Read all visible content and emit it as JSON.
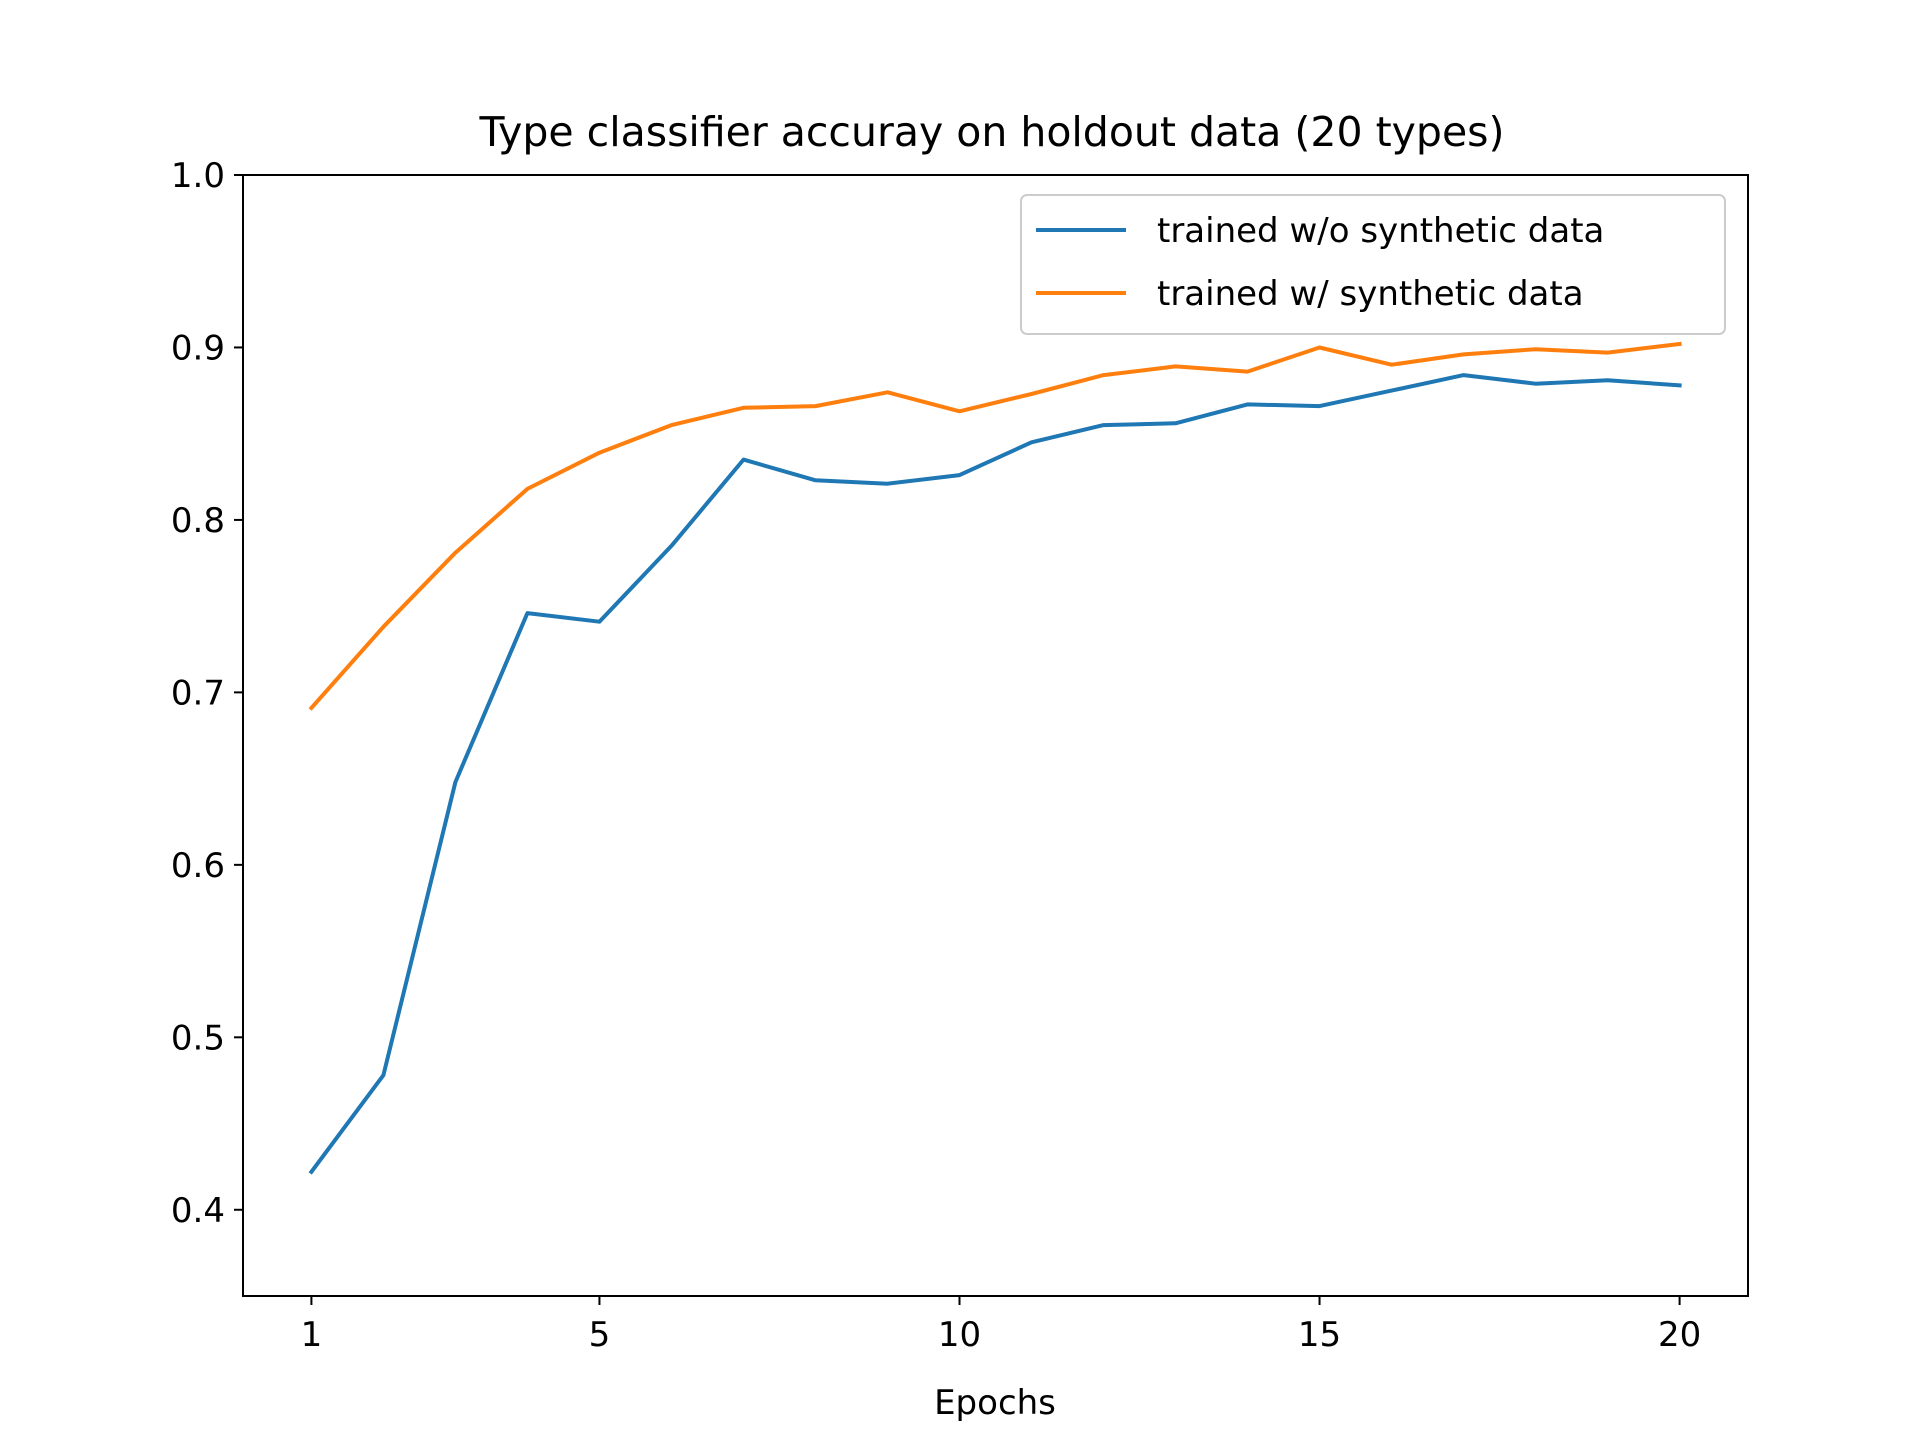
{
  "chart_data": {
    "type": "line",
    "title": "Type classifier accuray on holdout data (20 types)",
    "xlabel": "Epochs",
    "ylabel": "",
    "x": [
      1,
      2,
      3,
      4,
      5,
      6,
      7,
      8,
      9,
      10,
      11,
      12,
      13,
      14,
      15,
      16,
      17,
      18,
      19,
      20
    ],
    "xlim": [
      0.05,
      20.95
    ],
    "ylim": [
      0.35,
      1.0
    ],
    "x_ticks": [
      1,
      5,
      10,
      15,
      20
    ],
    "x_tick_labels": [
      "1",
      "5",
      "10",
      "15",
      "20"
    ],
    "y_ticks": [
      0.4,
      0.5,
      0.6,
      0.7,
      0.8,
      0.9,
      1.0
    ],
    "y_tick_labels": [
      "0.4",
      "0.5",
      "0.6",
      "0.7",
      "0.8",
      "0.9",
      "1.0"
    ],
    "grid": false,
    "legend_position": "top-right",
    "series": [
      {
        "name": "trained w/o synthetic data",
        "color": "#1f77b4",
        "values": [
          0.422,
          0.478,
          0.648,
          0.746,
          0.741,
          0.785,
          0.835,
          0.823,
          0.821,
          0.826,
          0.845,
          0.855,
          0.856,
          0.867,
          0.866,
          0.875,
          0.884,
          0.879,
          0.881,
          0.878
        ]
      },
      {
        "name": "trained w/ synthetic data",
        "color": "#ff7f0e",
        "values": [
          0.691,
          0.738,
          0.781,
          0.818,
          0.839,
          0.855,
          0.865,
          0.866,
          0.874,
          0.863,
          0.873,
          0.884,
          0.889,
          0.886,
          0.9,
          0.89,
          0.896,
          0.899,
          0.897,
          0.902
        ]
      }
    ]
  }
}
